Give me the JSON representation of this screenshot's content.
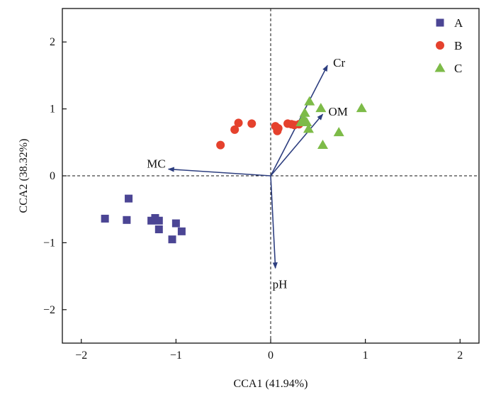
{
  "chart_data": {
    "type": "scatter",
    "xlabel": "CCA1 (41.94%)",
    "ylabel": "CCA2 (38.32%)",
    "xlim": [
      -2.2,
      2.2
    ],
    "ylim": [
      -2.5,
      2.5
    ],
    "xticks": [
      -2,
      -1,
      0,
      1,
      2
    ],
    "yticks": [
      -2,
      -1,
      0,
      1,
      2
    ],
    "reference_lines": {
      "x": 0,
      "y": 0,
      "style": "dashed"
    },
    "legend": {
      "placement": "top-right"
    },
    "series": [
      {
        "name": "A",
        "marker": "square",
        "color": "#4B4594",
        "points": [
          [
            -1.75,
            -0.64
          ],
          [
            -1.52,
            -0.66
          ],
          [
            -1.5,
            -0.34
          ],
          [
            -1.26,
            -0.67
          ],
          [
            -1.22,
            -0.63
          ],
          [
            -1.18,
            -0.67
          ],
          [
            -1.18,
            -0.8
          ],
          [
            -1.04,
            -0.95
          ],
          [
            -1.0,
            -0.71
          ],
          [
            -0.94,
            -0.83
          ]
        ]
      },
      {
        "name": "B",
        "marker": "circle",
        "color": "#E5412D",
        "points": [
          [
            -0.53,
            0.46
          ],
          [
            -0.38,
            0.69
          ],
          [
            -0.34,
            0.79
          ],
          [
            -0.2,
            0.78
          ],
          [
            0.05,
            0.74
          ],
          [
            0.07,
            0.67
          ],
          [
            0.08,
            0.71
          ],
          [
            0.18,
            0.78
          ],
          [
            0.22,
            0.77
          ],
          [
            0.25,
            0.76
          ],
          [
            0.3,
            0.77
          ]
        ]
      },
      {
        "name": "C",
        "marker": "triangle",
        "color": "#7DBB48",
        "points": [
          [
            0.32,
            0.8
          ],
          [
            0.35,
            0.85
          ],
          [
            0.36,
            0.94
          ],
          [
            0.38,
            0.8
          ],
          [
            0.4,
            0.7
          ],
          [
            0.41,
            1.11
          ],
          [
            0.53,
            1.01
          ],
          [
            0.55,
            0.46
          ],
          [
            0.72,
            0.65
          ],
          [
            0.96,
            1.01
          ]
        ]
      }
    ],
    "vectors": [
      {
        "label": "Cr",
        "x": 0.6,
        "y": 1.65
      },
      {
        "label": "OM",
        "x": 0.55,
        "y": 0.92
      },
      {
        "label": "MC",
        "x": -1.08,
        "y": 0.1
      },
      {
        "label": "pH",
        "x": 0.05,
        "y": -1.38
      }
    ],
    "colors": {
      "axis": "#111111",
      "vector": "#2D3E7F"
    }
  }
}
